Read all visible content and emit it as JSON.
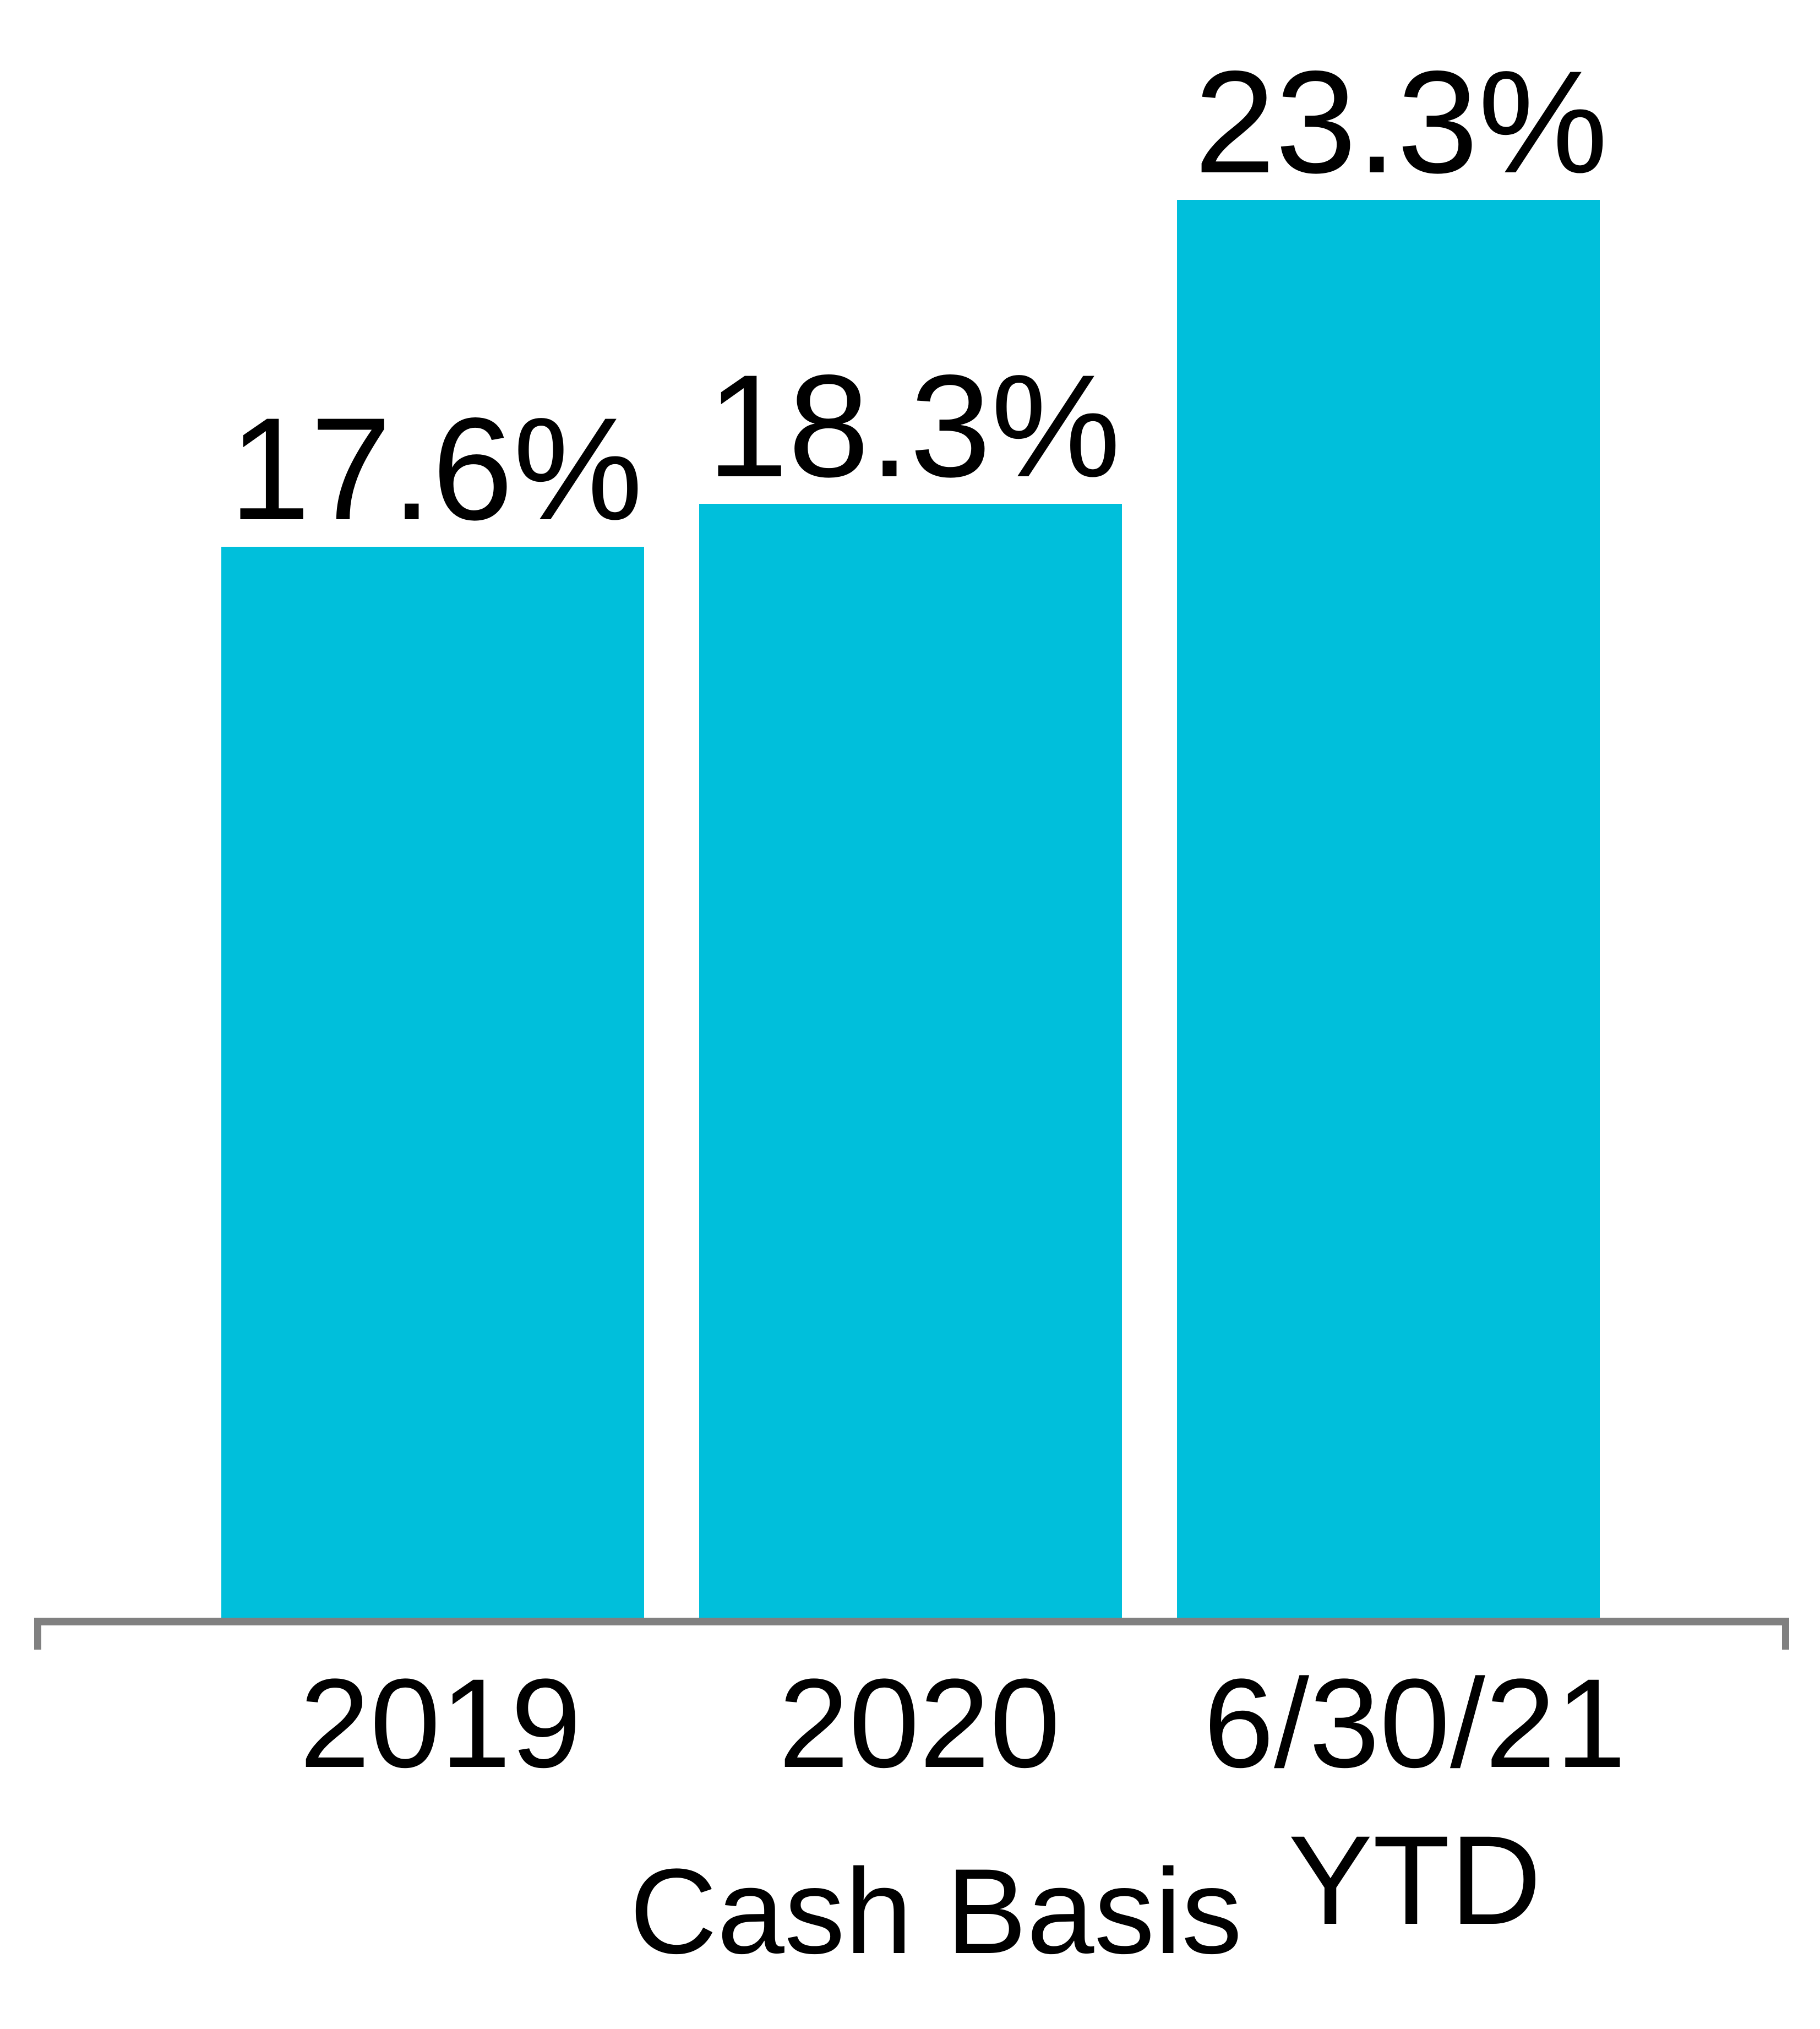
{
  "chart_data": {
    "type": "bar",
    "title": "",
    "xlabel": "Cash Basis",
    "ylabel": "",
    "categories": [
      "2019",
      "2020",
      "6/30/21 YTD"
    ],
    "values": [
      17.6,
      18.3,
      23.3
    ],
    "points": [
      {
        "category": "2019",
        "value": 17.6,
        "label": "17.6%"
      },
      {
        "category": "2020",
        "value": 18.3,
        "label": "18.3%"
      },
      {
        "category": "6/30/21 YTD",
        "value": 23.3,
        "label": "23.3%"
      }
    ],
    "x_ticks": [
      {
        "line1": "2019",
        "line2": ""
      },
      {
        "line1": "2020",
        "line2": ""
      },
      {
        "line1": "6/30/21",
        "line2": "YTD"
      }
    ],
    "ylim": [
      0,
      23.3
    ],
    "grid": false,
    "legend": false,
    "bar_color": "#00BFDB",
    "axis_color": "#808080",
    "text_color": "#000000"
  }
}
